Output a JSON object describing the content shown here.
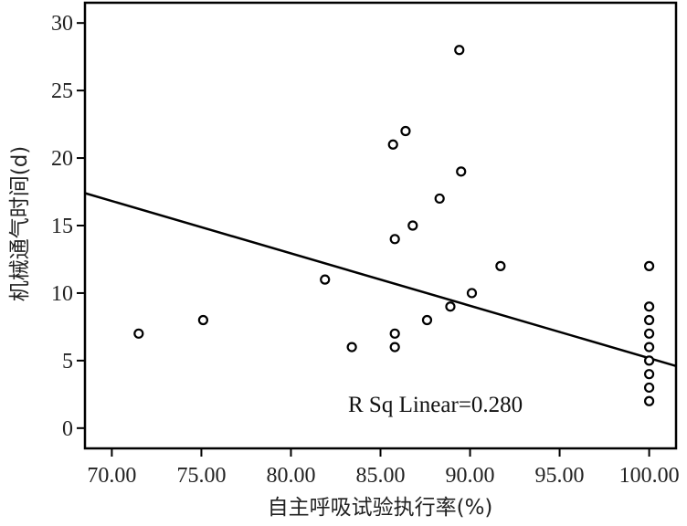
{
  "chart_data": {
    "type": "scatter",
    "xlabel": "自主呼吸试验执行率(%)",
    "ylabel": "机械通气时间(d)",
    "xlim": [
      68.5,
      101.5
    ],
    "ylim": [
      -1.5,
      31.5
    ],
    "x_ticks": [
      "70.00",
      "75.00",
      "80.00",
      "85.00",
      "90.00",
      "95.00",
      "100.00"
    ],
    "y_ticks": [
      "0",
      "5",
      "10",
      "15",
      "20",
      "25",
      "30"
    ],
    "grid": false,
    "annotation": "R Sq Linear=0.280",
    "points": [
      {
        "x": 71.5,
        "y": 7
      },
      {
        "x": 75.1,
        "y": 8
      },
      {
        "x": 81.9,
        "y": 11
      },
      {
        "x": 83.4,
        "y": 6
      },
      {
        "x": 85.7,
        "y": 21
      },
      {
        "x": 86.4,
        "y": 22
      },
      {
        "x": 85.8,
        "y": 14
      },
      {
        "x": 86.8,
        "y": 15
      },
      {
        "x": 85.8,
        "y": 7
      },
      {
        "x": 85.8,
        "y": 6
      },
      {
        "x": 87.6,
        "y": 8
      },
      {
        "x": 88.3,
        "y": 17
      },
      {
        "x": 88.9,
        "y": 9
      },
      {
        "x": 89.4,
        "y": 28
      },
      {
        "x": 89.5,
        "y": 19
      },
      {
        "x": 90.1,
        "y": 10
      },
      {
        "x": 91.7,
        "y": 12
      },
      {
        "x": 100.0,
        "y": 12
      },
      {
        "x": 100.0,
        "y": 9
      },
      {
        "x": 100.0,
        "y": 8
      },
      {
        "x": 100.0,
        "y": 7
      },
      {
        "x": 100.0,
        "y": 6
      },
      {
        "x": 100.0,
        "y": 5
      },
      {
        "x": 100.0,
        "y": 4
      },
      {
        "x": 100.0,
        "y": 3
      },
      {
        "x": 100.0,
        "y": 2
      }
    ],
    "fit_line": {
      "x": [
        68.5,
        101.5
      ],
      "y": [
        17.4,
        4.6
      ]
    }
  }
}
